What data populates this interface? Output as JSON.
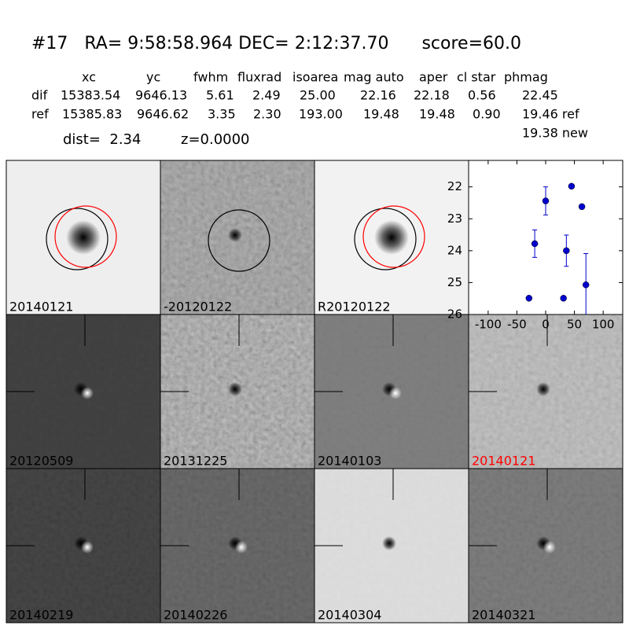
{
  "header": {
    "title": "#17   RA= 9:58:58.964 DEC= 2:12:37.70      score=60.0"
  },
  "table": {
    "header": [
      "xc",
      "yc",
      "fwhm",
      "fluxrad",
      "isoarea",
      "mag auto",
      "aper",
      "cl star",
      "phmag"
    ],
    "rows": [
      [
        "dif",
        "15383.54",
        "9646.13",
        "5.61",
        "2.49",
        "25.00",
        "22.16",
        "22.18",
        "0.56",
        "22.45"
      ],
      [
        "ref",
        "15385.83",
        "9646.62",
        "3.35",
        "2.30",
        "193.00",
        "19.48",
        "19.48",
        "0.90",
        "19.46 ref"
      ]
    ],
    "extra_line": "19.38 new"
  },
  "stats": [
    "dist=  2.34",
    "z=0.0000"
  ],
  "panels": [
    {
      "label": "20140121"
    },
    {
      "label": "-20120122"
    },
    {
      "label": "R20120122"
    },
    {
      "label": "20120509"
    },
    {
      "label": "20131225"
    },
    {
      "label": "20140103"
    },
    {
      "label": "20140121",
      "color": "#ff0000"
    },
    {
      "label": "20140219"
    },
    {
      "label": "20140226"
    },
    {
      "label": "20140304"
    },
    {
      "label": "20140321"
    }
  ],
  "chart_data": {
    "type": "scatter",
    "color": "#0000cc",
    "x": [
      -29,
      -19,
      0,
      31,
      36,
      45,
      63,
      70
    ],
    "values": [
      25.49,
      23.78,
      22.44,
      25.49,
      24.0,
      21.98,
      22.62,
      25.07
    ],
    "errors": [
      0.05,
      0.43,
      0.44,
      0.05,
      0.49,
      0.04,
      0.07,
      0.98
    ],
    "xlim": [
      -134,
      134
    ],
    "ylim": [
      26,
      21.17
    ],
    "xticks": [
      -100,
      -50,
      0,
      50,
      100
    ],
    "yticks": [
      22,
      23,
      24,
      25,
      26
    ]
  }
}
